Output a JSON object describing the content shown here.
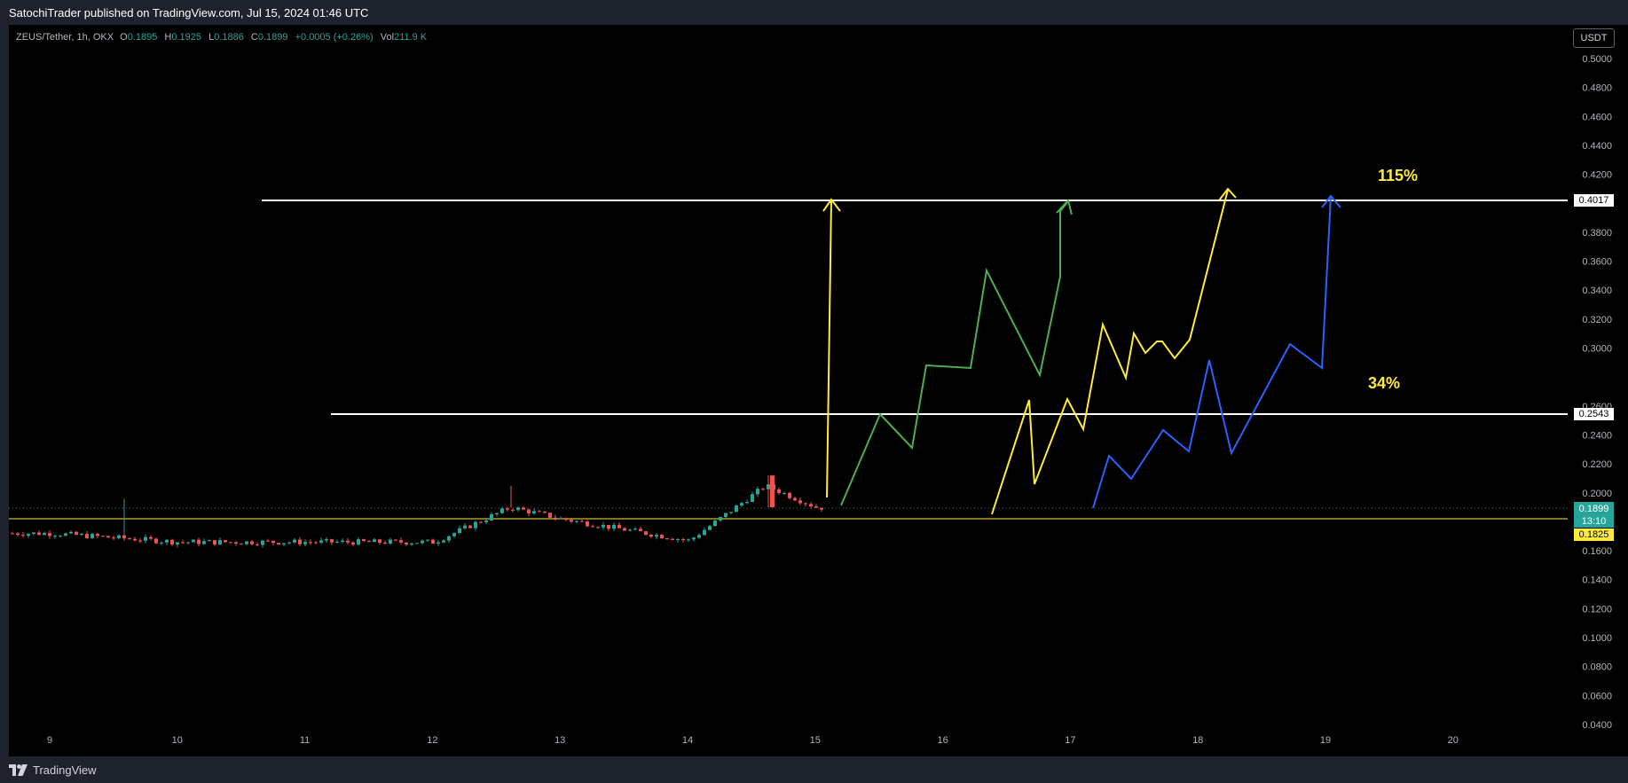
{
  "header": {
    "published": "SatochiTrader published on TradingView.com, Jul 15, 2024 01:46 UTC"
  },
  "legend": {
    "symbol": "ZEUS/Tether, 1h, OKX",
    "open_label": "O",
    "open": "0.1895",
    "high_label": "H",
    "high": "0.1925",
    "low_label": "L",
    "low": "0.1886",
    "close_label": "C",
    "close": "0.1899",
    "change": "+0.0005 (+0.26%)",
    "vol_label": "Vol",
    "vol": "211.9 K"
  },
  "price_axis": {
    "currency": "USDT",
    "ticks": [
      "0.5000",
      "0.4800",
      "0.4600",
      "0.4400",
      "0.4200",
      "0.3800",
      "0.3600",
      "0.3400",
      "0.3200",
      "0.3000",
      "0.2600",
      "0.2400",
      "0.2200",
      "0.2000",
      "0.1600",
      "0.1400",
      "0.1200",
      "0.1000",
      "0.0800",
      "0.0600",
      "0.0400"
    ]
  },
  "time_axis": {
    "labels": [
      "9",
      "10",
      "11",
      "12",
      "13",
      "14",
      "15",
      "16",
      "17",
      "18",
      "19",
      "20"
    ]
  },
  "price_labels": {
    "resistance_top": "0.4017",
    "resistance_mid": "0.2543",
    "last_price": "0.1899",
    "countdown": "13:10",
    "support": "0.1825"
  },
  "annotations": {
    "target_high": "115%",
    "target_mid": "34%"
  },
  "footer": {
    "brand": "TradingView"
  },
  "colors": {
    "background": "#000000",
    "up": "#26a69a",
    "down": "#ef5350",
    "yellow": "#ffeb3b",
    "green_path": "#4caf50",
    "blue_path": "#2962ff",
    "level_line": "#ffffff"
  },
  "chart_data": {
    "type": "candlestick",
    "symbol": "ZEUS/Tether",
    "interval": "1h",
    "ylim": [
      0.04,
      0.5
    ],
    "horizontal_levels": [
      0.4017,
      0.2543,
      0.1825
    ],
    "last_close": 0.1899,
    "price_history": [
      {
        "day": "9",
        "approx_close": 0.172
      },
      {
        "day": "10",
        "approx_close": 0.166
      },
      {
        "day": "11",
        "approx_close": 0.166
      },
      {
        "day": "12",
        "approx_close": 0.166
      },
      {
        "day": "12.6",
        "approx_close": 0.19
      },
      {
        "day": "13",
        "approx_close": 0.182
      },
      {
        "day": "14",
        "approx_close": 0.167
      },
      {
        "day": "14.6",
        "approx_close": 0.205
      },
      {
        "day": "15",
        "approx_close": 0.1899
      }
    ]
  }
}
